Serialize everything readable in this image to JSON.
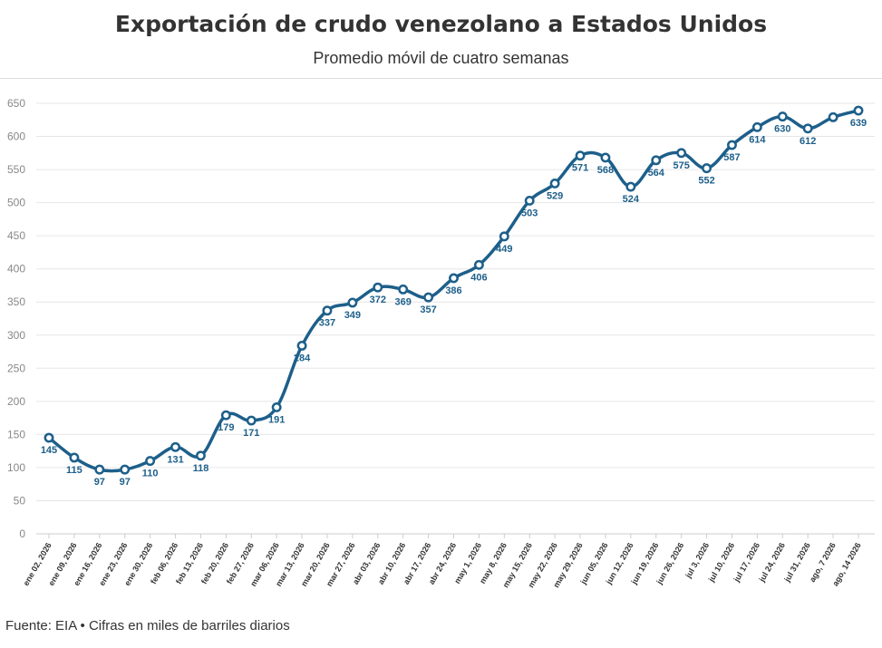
{
  "header": {
    "title": "Exportación de crudo venezolano a Estados Unidos",
    "subtitle": "Promedio móvil de cuatro semanas"
  },
  "footer": {
    "source": "Fuente: EIA • Cifras en miles de barriles diarios"
  },
  "chart_data": {
    "type": "line",
    "categories": [
      "ene 02, 2026",
      "ene 09, 2026",
      "ene 16, 2026",
      "ene 23, 2026",
      "ene 30, 2026",
      "feb 06, 2026",
      "feb 13, 2026",
      "feb 20, 2026",
      "feb 27, 2026",
      "mar 06, 2026",
      "mar 13, 2026",
      "mar 20, 2026",
      "mar 27, 2026",
      "abr 03, 2026",
      "abr 10, 2026",
      "abr 17, 2026",
      "abr 24, 2026",
      "may 1, 2026",
      "may 8, 2026",
      "may 15, 2026",
      "may 22, 2026",
      "may 29, 2026",
      "jun 05, 2026",
      "jun 12, 2026",
      "jun 19, 2026",
      "jun 26, 2026",
      "jul 3, 2026",
      "jul 10, 2026",
      "jul 17, 2026",
      "jul 24, 2026",
      "jul 31, 2026",
      "ago, 7 2026",
      "ago, 14 2026"
    ],
    "values": [
      145,
      115,
      97,
      97,
      110,
      131,
      118,
      179,
      171,
      191,
      284,
      337,
      349,
      372,
      369,
      357,
      386,
      406,
      449,
      503,
      529,
      571,
      568,
      524,
      564,
      575,
      552,
      587,
      614,
      630,
      612,
      629,
      639
    ],
    "labels": [
      "145",
      "115",
      "97",
      "97",
      "110",
      "131",
      "118",
      "179",
      "171",
      "191",
      "284",
      "337",
      "349",
      "372",
      "369",
      "357",
      "386",
      "406",
      "449",
      "503",
      "529",
      "571",
      "568",
      "524",
      "564",
      "575",
      "552",
      "587",
      "614",
      "630",
      "612",
      "",
      "639"
    ],
    "yticks": [
      0,
      50,
      100,
      150,
      200,
      250,
      300,
      350,
      400,
      450,
      500,
      550,
      600,
      650
    ],
    "ylim": [
      0,
      650
    ],
    "grid": true,
    "line_color": "#1d5f8a"
  }
}
